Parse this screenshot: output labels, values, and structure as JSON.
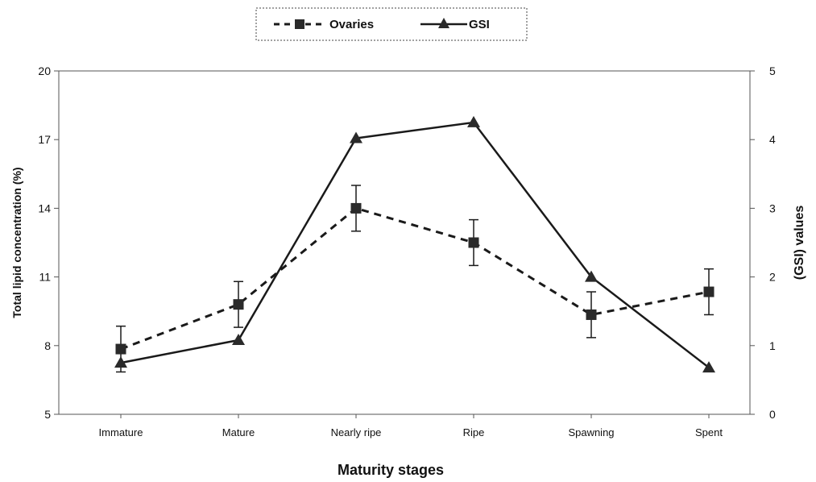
{
  "chart_data": {
    "type": "line",
    "categories": [
      "Immature",
      "Mature",
      "Nearly ripe",
      "Ripe",
      "Spawning",
      "Spent"
    ],
    "xlabel": "Maturity stages",
    "ylabel_left": "Total lipid concentration (%)",
    "ylabel_right": "(GSI)  values",
    "ylim_left": [
      5,
      20
    ],
    "yticks_left": [
      5,
      8,
      11,
      14,
      17,
      20
    ],
    "ylim_right": [
      0,
      5
    ],
    "yticks_right": [
      0,
      1,
      2,
      3,
      4,
      5
    ],
    "grid": false,
    "legend_position": "top-center",
    "series": [
      {
        "name": "Ovaries",
        "axis": "left",
        "style": "dashed",
        "marker": "square",
        "values": [
          7.85,
          9.8,
          14.0,
          12.5,
          9.35,
          10.35
        ],
        "error": [
          1.0,
          1.0,
          1.0,
          1.0,
          1.0,
          1.0
        ]
      },
      {
        "name": "GSI",
        "axis": "right",
        "style": "solid",
        "marker": "triangle",
        "values": [
          0.75,
          1.08,
          4.02,
          4.25,
          2.0,
          0.68
        ]
      }
    ],
    "colors": {
      "line": "#1a1a1a",
      "marker": "#2a2a2a"
    }
  }
}
